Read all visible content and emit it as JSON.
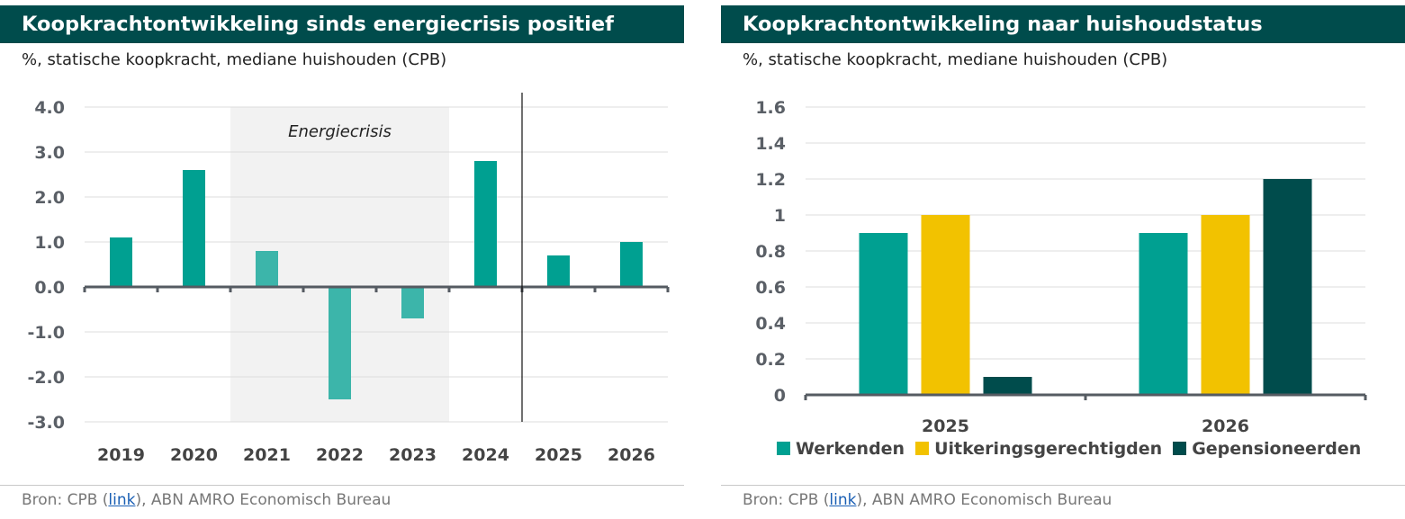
{
  "left": {
    "title": "Koopkrachtontwikkeling sinds energiecrisis positief",
    "subtitle": "%, statische koopkracht, mediane huishouden (CPB)",
    "source_prefix": "Bron: CPB (",
    "source_link": "link",
    "source_suffix": "), ABN AMRO Economisch Bureau"
  },
  "right": {
    "title": "Koopkrachtontwikkeling naar huishoudstatus",
    "subtitle": "%, statische koopkracht, mediane huishouden (CPB)",
    "source_prefix": "Bron: CPB (",
    "source_link": "link",
    "source_suffix": "), ABN AMRO Economisch Bureau"
  },
  "chart_data": [
    {
      "type": "bar",
      "title": "Koopkrachtontwikkeling sinds energiecrisis positief",
      "subtitle": "%, statische koopkracht, mediane huishouden (CPB)",
      "categories": [
        "2019",
        "2020",
        "2021",
        "2022",
        "2023",
        "2024",
        "2025",
        "2026"
      ],
      "values": [
        1.1,
        2.6,
        0.8,
        -2.5,
        -0.7,
        2.8,
        0.7,
        1.0
      ],
      "ylim": [
        -3.0,
        4.0
      ],
      "yticks": [
        "4.0",
        "3.0",
        "2.0",
        "1.0",
        "0.0",
        "-1.0",
        "-2.0",
        "-3.0"
      ],
      "ytick_values": [
        4,
        3,
        2,
        1,
        0,
        -1,
        -2,
        -3
      ],
      "grid": true,
      "annotation": {
        "label": "Energiecrisis",
        "from_category": "2021",
        "to_category": "2023"
      },
      "forecast_divider_after": "2024",
      "colors": {
        "bar": "#00a091",
        "bar_crisis": "#3cb5aa",
        "shade": "#f2f2f2",
        "axis": "#555b62"
      }
    },
    {
      "type": "bar",
      "title": "Koopkrachtontwikkeling naar huishoudstatus",
      "subtitle": "%, statische koopkracht, mediane huishouden (CPB)",
      "categories": [
        "2025",
        "2026"
      ],
      "series": [
        {
          "name": "Werkenden",
          "values": [
            0.9,
            0.9
          ],
          "color": "#00a091"
        },
        {
          "name": "Uitkeringsgerechtigden",
          "values": [
            1.0,
            1.0
          ],
          "color": "#f2c200"
        },
        {
          "name": "Gepensioneerden",
          "values": [
            0.1,
            1.2
          ],
          "color": "#004c4c"
        }
      ],
      "ylim": [
        0,
        1.6
      ],
      "yticks": [
        "1.6",
        "1.4",
        "1.2",
        "1",
        "0.8",
        "0.6",
        "0.4",
        "0.2",
        "0"
      ],
      "ytick_values": [
        1.6,
        1.4,
        1.2,
        1.0,
        0.8,
        0.6,
        0.4,
        0.2,
        0
      ],
      "grid": true,
      "legend_position": "bottom",
      "colors": {
        "axis": "#555b62"
      }
    }
  ]
}
